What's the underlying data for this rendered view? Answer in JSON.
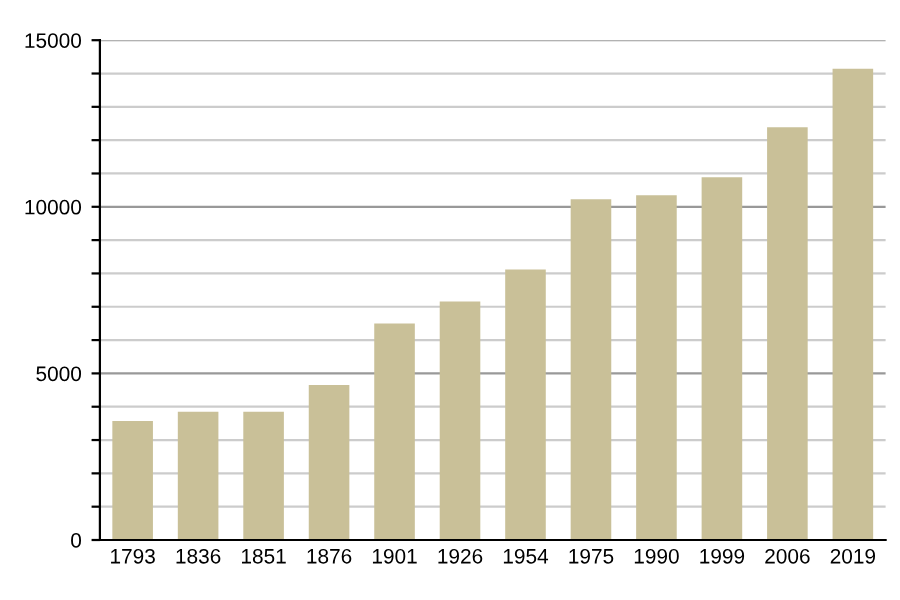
{
  "chart_data": {
    "type": "bar",
    "categories": [
      "1793",
      "1836",
      "1851",
      "1876",
      "1901",
      "1926",
      "1954",
      "1975",
      "1990",
      "1999",
      "2006",
      "2019"
    ],
    "values": [
      3570,
      3850,
      3850,
      4650,
      6500,
      7160,
      8120,
      10230,
      10350,
      10890,
      12390,
      14140
    ],
    "color": "#c9c098",
    "ylim": [
      0,
      15000
    ],
    "yticks": [
      0,
      {
        "value": 1000,
        "label": null
      },
      {
        "value": 2000,
        "label": null
      },
      {
        "value": 3000,
        "label": null
      },
      {
        "value": 4000,
        "label": null
      },
      5000,
      {
        "value": 6000,
        "label": null
      },
      {
        "value": 7000,
        "label": null
      },
      {
        "value": 8000,
        "label": null
      },
      {
        "value": 9000,
        "label": null
      },
      10000,
      {
        "value": 11000,
        "label": null
      },
      {
        "value": 12000,
        "label": null
      },
      {
        "value": 13000,
        "label": null
      },
      {
        "value": 14000,
        "label": null
      },
      15000
    ],
    "grid": "y"
  }
}
